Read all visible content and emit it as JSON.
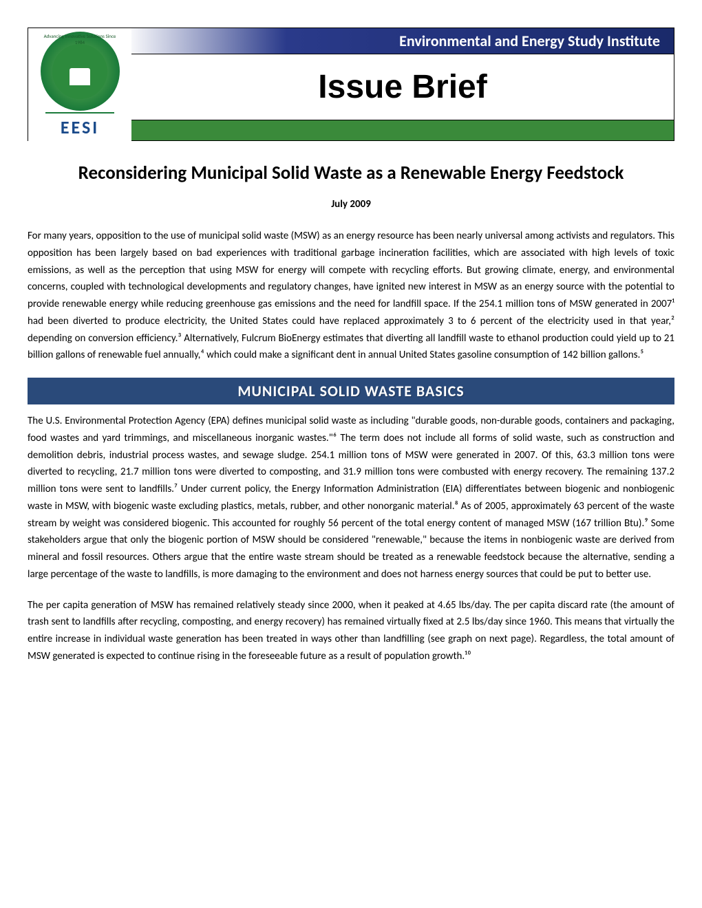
{
  "header": {
    "org_name": "Environmental and Energy Study Institute",
    "brief_title": "Issue Brief",
    "logo_acronym": "EESI",
    "logo_ring_text": "Advancing Innovative Solutions Since 1984",
    "colors": {
      "banner_blue_start": "#2a3a8a",
      "banner_blue_end": "#1a2a6a",
      "banner_green": "#3a8a3a",
      "logo_green": "#1a7a3a",
      "logo_blue": "#1a4a8a",
      "section_header_bg": "#2a4a7a"
    }
  },
  "document": {
    "title": "Reconsidering Municipal Solid Waste as a Renewable Energy Feedstock",
    "date": "July 2009",
    "intro_paragraph": "For many years, opposition to the use of municipal solid waste (MSW) as an energy resource has been nearly universal among activists and regulators. This opposition has been largely based on bad experiences with traditional garbage incineration facilities, which are associated with high levels of toxic emissions, as well as the perception that using MSW for energy will compete with recycling efforts. But growing climate, energy, and environmental concerns, coupled with technological developments and regulatory changes, have ignited new interest in MSW as an energy source with the potential to provide renewable energy while reducing greenhouse gas emissions and the need for landfill space. If the 254.1 million tons of MSW generated in 2007¹ had been diverted to produce electricity, the United States could have replaced approximately 3 to 6 percent of the electricity used in that year,² depending on conversion efficiency.³ Alternatively, Fulcrum BioEnergy estimates that diverting all landfill waste to ethanol production could yield up to 21 billion gallons of renewable fuel annually,⁴ which could make a significant dent in annual United States gasoline consumption of 142 billion gallons.⁵",
    "section1": {
      "heading": "MUNICIPAL SOLID WASTE BASICS",
      "paragraph1": "The U.S. Environmental Protection Agency (EPA) defines municipal solid waste as including \"durable goods, non-durable goods, containers and packaging, food wastes and yard trimmings, and miscellaneous inorganic wastes.\"⁶ The term does not include all forms of solid waste, such as construction and demolition debris, industrial process wastes, and sewage sludge. 254.1 million tons of MSW were generated in 2007. Of this, 63.3 million tons were diverted to recycling, 21.7 million tons were diverted to composting, and 31.9 million tons were combusted with energy recovery. The remaining 137.2 million tons were sent to landfills.⁷ Under current policy, the Energy Information Administration (EIA) differentiates between biogenic and nonbiogenic waste in MSW, with biogenic waste excluding plastics, metals, rubber, and other nonorganic material.⁸ As of 2005, approximately 63 percent of the waste stream by weight was considered biogenic. This accounted for roughly 56 percent of the total energy content of managed MSW (167 trillion Btu).⁹ Some stakeholders argue that only the biogenic portion of MSW should be considered \"renewable,\" because the items in nonbiogenic waste are derived from mineral and fossil resources. Others argue that the entire waste stream should be treated as a renewable feedstock because the alternative, sending a large percentage of the waste to landfills, is more damaging to the environment and does not harness energy sources that could be put to better use.",
      "paragraph2": "The per capita generation of MSW has remained relatively steady since 2000, when it peaked at 4.65 lbs/day. The per capita discard rate (the amount of trash sent to landfills after recycling, composting, and energy recovery) has remained virtually fixed at 2.5 lbs/day since 1960. This means that virtually the entire increase in individual waste generation has been treated in ways other than landfilling (see graph on next page). Regardless, the total amount of MSW generated is expected to continue rising in the foreseeable future as a result of population growth.¹⁰"
    }
  },
  "typography": {
    "title_fontsize": 27,
    "date_fontsize": 15,
    "body_fontsize": 15,
    "section_header_fontsize": 22,
    "banner_org_fontsize": 22,
    "banner_title_fontsize": 48
  }
}
